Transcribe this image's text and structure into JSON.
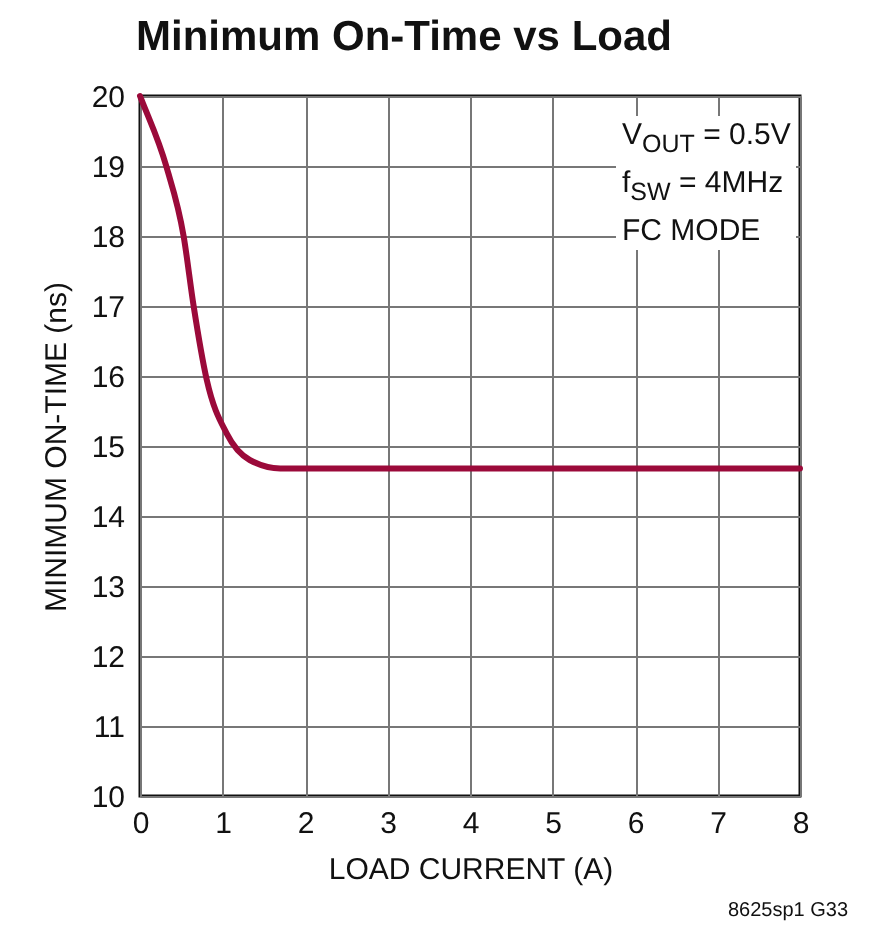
{
  "chart_data": {
    "type": "line",
    "title": "Minimum On-Time vs Load",
    "xlabel": "LOAD CURRENT (A)",
    "ylabel": "MINIMUM ON-TIME (ns)",
    "x": [
      0,
      0.02,
      0.32,
      0.53,
      0.65,
      0.81,
      1.05,
      1.33,
      1.7,
      2.5,
      4,
      6,
      8
    ],
    "series": [
      {
        "color": "#9b0a3a",
        "values": [
          20,
          19.94,
          18.99,
          17.99,
          17.0,
          15.94,
          15.18,
          14.8,
          14.68,
          14.68,
          14.68,
          14.68,
          14.68
        ]
      }
    ],
    "xlim": [
      0,
      8
    ],
    "xticks": [
      0,
      1,
      2,
      3,
      4,
      5,
      6,
      7,
      8
    ],
    "ylim": [
      10,
      20
    ],
    "yticks": [
      10,
      11,
      12,
      13,
      14,
      15,
      16,
      17,
      18,
      19,
      20
    ],
    "grid": true,
    "marker": "none",
    "line_style": "solid",
    "annotations": [
      "V$_{OUT}$ = 0.5V",
      "f$_{SW}$ = 4MHz",
      "FC MODE",
      "8625sp1 G33"
    ]
  }
}
